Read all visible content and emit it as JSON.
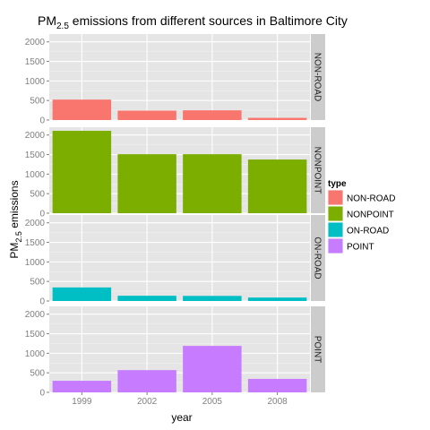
{
  "chart_data": {
    "type": "bar",
    "title": "PM2.5 emissions from different sources in Baltimore City",
    "title_parts": {
      "base": "PM",
      "sub": "2.5",
      "rest": " emissions from different sources in Baltimore City"
    },
    "xlabel": "year",
    "ylabel_parts": {
      "base": "PM",
      "sub": "2.5",
      "rest": " emissions"
    },
    "categories": [
      "1999",
      "2002",
      "2005",
      "2008"
    ],
    "ylim": [
      0,
      2200
    ],
    "yticks": [
      0,
      500,
      1000,
      1500,
      2000
    ],
    "facet": "rows",
    "grid": true,
    "legend_position": "right",
    "legend_title": "type",
    "series": [
      {
        "name": "NON-ROAD",
        "color": "#F8766D",
        "values": [
          522.9,
          240.8,
          248.9,
          55.8
        ]
      },
      {
        "name": "NONPOINT",
        "color": "#7CAE00",
        "values": [
          2107.6,
          1509.5,
          1509.5,
          1373.2
        ]
      },
      {
        "name": "ON-ROAD",
        "color": "#00BFC4",
        "values": [
          346.8,
          134.3,
          130.4,
          88.3
        ]
      },
      {
        "name": "POINT",
        "color": "#C77CFF",
        "values": [
          296.8,
          569.3,
          1189.3,
          344.98
        ]
      }
    ]
  }
}
